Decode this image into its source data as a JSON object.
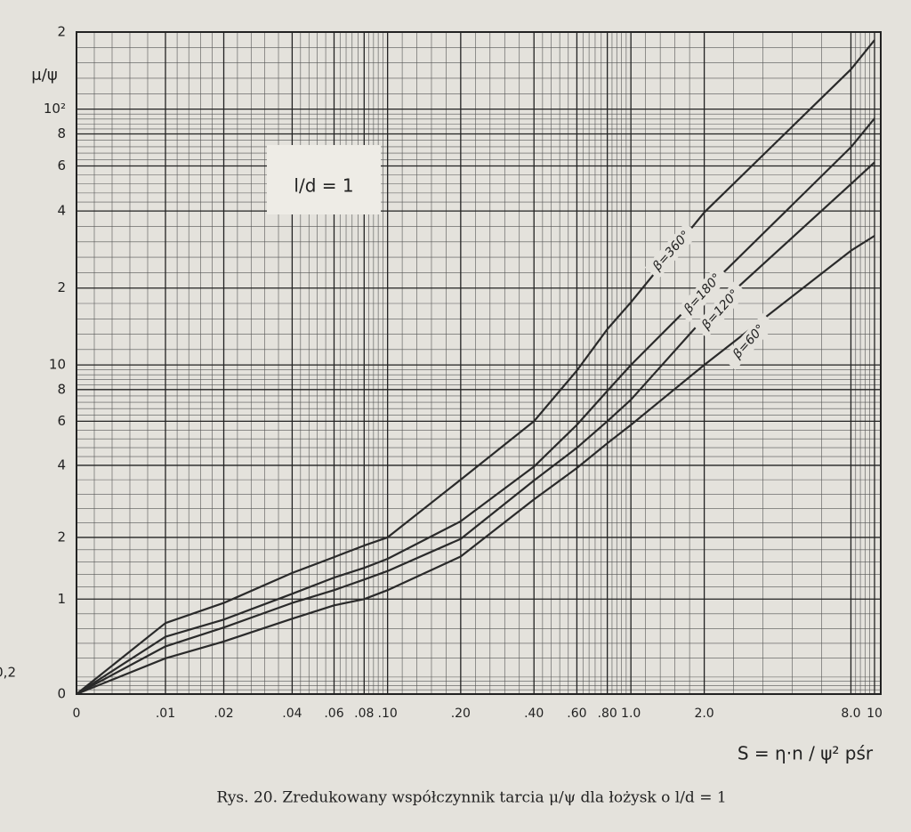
{
  "chart_data": {
    "type": "line",
    "y_label": "μ/ψ",
    "x_label": "S = η·n / ψ² pśr",
    "annotation": "l/d = 1",
    "caption": "Rys. 20. Zredukowany współczynnik tarcia μ/ψ dla łożysk o l/d = 1",
    "x": [
      0,
      0.01,
      0.02,
      0.04,
      0.06,
      0.08,
      0.1,
      0.2,
      0.4,
      0.6,
      0.8,
      1.0,
      2.0,
      8.0,
      10
    ],
    "series": [
      {
        "name": "β=360°",
        "color": "#2a2a2a",
        "values": [
          0,
          0.71,
          0.95,
          1.37,
          1.63,
          1.84,
          2.0,
          3.5,
          6,
          9.5,
          13.8,
          17.6,
          39.5,
          143,
          186
        ]
      },
      {
        "name": "β=180°",
        "color": "#2a2a2a",
        "values": [
          0,
          0.56,
          0.75,
          1.07,
          1.3,
          1.45,
          1.6,
          2.35,
          3.95,
          5.8,
          7.9,
          10,
          19.4,
          71,
          92
        ]
      },
      {
        "name": "β=120°",
        "color": "#2a2a2a",
        "values": [
          0,
          0.46,
          0.66,
          0.95,
          1.12,
          1.27,
          1.4,
          1.97,
          3.47,
          4.7,
          6.0,
          7.3,
          15.3,
          51,
          62
        ]
      },
      {
        "name": "β=60°",
        "color": "#2a2a2a",
        "values": [
          0,
          0.34,
          0.51,
          0.76,
          0.92,
          1.0,
          1.12,
          1.64,
          2.9,
          3.9,
          4.9,
          5.8,
          10,
          28,
          32
        ]
      }
    ],
    "xlim": [
      0,
      10
    ],
    "ylim": [
      0,
      200
    ],
    "xticks": [
      0,
      {
        "value": 0.01,
        "label": ".01"
      },
      {
        "value": 0.02,
        "label": ".02"
      },
      {
        "value": 0.04,
        "label": ".04"
      },
      {
        "value": 0.06,
        "label": ".06"
      },
      {
        "value": 0.08,
        "label": ".08"
      },
      {
        "value": 0.1,
        "label": ".10"
      },
      {
        "value": 0.2,
        "label": ".20"
      },
      {
        "value": 0.4,
        "label": ".40"
      },
      {
        "value": 0.6,
        "label": ".60"
      },
      {
        "value": 0.8,
        "label": ".80"
      },
      {
        "value": 1.0,
        "label": "1.0"
      },
      {
        "value": 2.0,
        "label": "2.0"
      },
      {
        "value": 8.0,
        "label": "8.0"
      },
      10
    ],
    "yticks": [
      0,
      {
        "value": 0.2,
        "label": "0,2"
      },
      1,
      2,
      4,
      6,
      8,
      10,
      {
        "value": 20,
        "label": "2"
      },
      {
        "value": 40,
        "label": "4"
      },
      {
        "value": 60,
        "label": "6"
      },
      {
        "value": 80,
        "label": "8"
      },
      {
        "value": 100,
        "label": "10²"
      },
      {
        "value": 200,
        "label": "2"
      }
    ],
    "grid": true
  }
}
